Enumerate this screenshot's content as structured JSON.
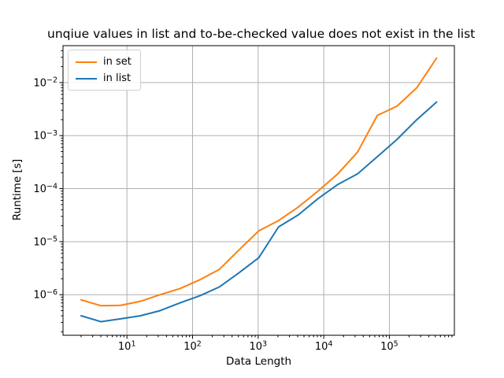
{
  "chart_data": {
    "type": "line",
    "title": "unqiue values in list and to-be-checked value does not exist in the list",
    "xlabel": "Data Length",
    "ylabel": "Runtime [s]",
    "x_scale": "log",
    "y_scale": "log",
    "grid": true,
    "grid_color": "#b0b0b0",
    "axis_color": "#000000",
    "legend_position": "upper left",
    "x_range": [
      1.06,
      980000
    ],
    "y_range": [
      1.72e-07,
      0.0497
    ],
    "x_tick_exponents": [
      1,
      2,
      3,
      4,
      5
    ],
    "y_tick_exponents": [
      -2,
      -3,
      -4,
      -5,
      -6
    ],
    "x": [
      2,
      4,
      8,
      16,
      32,
      64,
      128,
      256,
      512,
      1024,
      2048,
      4096,
      8192,
      16384,
      32768,
      65536,
      131072,
      262144,
      524288
    ],
    "series": [
      {
        "name": "in set",
        "color": "#ff7f0e",
        "values": [
          8e-07,
          6.2e-07,
          6.3e-07,
          7.5e-07,
          1e-06,
          1.3e-06,
          1.9e-06,
          3e-06,
          7e-06,
          1.6e-05,
          2.5e-05,
          4.5e-05,
          9e-05,
          0.00019,
          0.00049,
          0.0024,
          0.0036,
          0.008,
          0.029
        ]
      },
      {
        "name": "in list",
        "color": "#1f77b4",
        "values": [
          4e-07,
          3.1e-07,
          3.5e-07,
          4e-07,
          5e-07,
          7e-07,
          9.5e-07,
          1.4e-06,
          2.6e-06,
          5e-06,
          1.9e-05,
          3.2e-05,
          6.5e-05,
          0.00012,
          0.00019,
          0.0004,
          0.00085,
          0.002,
          0.0043
        ]
      }
    ]
  }
}
